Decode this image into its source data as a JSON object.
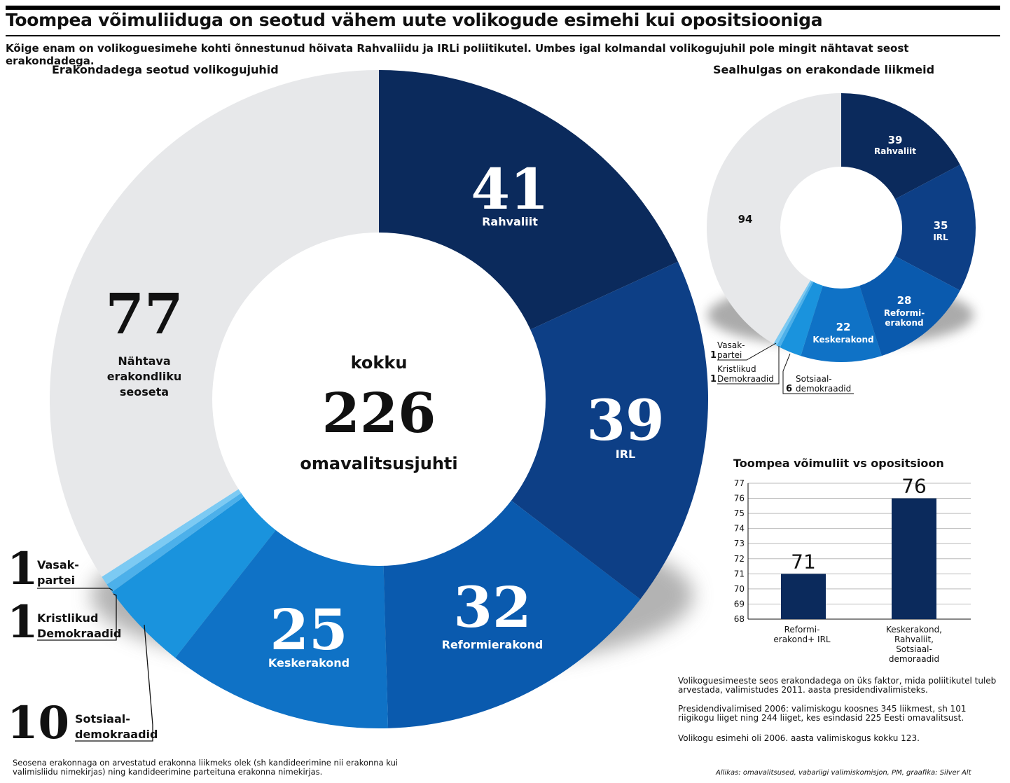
{
  "header": {
    "title": "Toompea võimuliiduga on seotud vähem uute volikogude esimehi kui opositsiooniga",
    "subtitle": "Kõige enam on volikoguesimehe kohti õnnestunud hõivata Rahvaliidu ja IRLi poliitikutel. Umbes igal kolmandal volikogujuhil pole mingit nähtavat seost erakondadega."
  },
  "colors": {
    "rahvaliit": "#0b2a5c",
    "irl": "#0d3f86",
    "reform": "#0a5aae",
    "kesk": "#0f72c6",
    "sots": "#1a93dd",
    "kristlik": "#4cb0ea",
    "vasak": "#7ccaf3",
    "none": "#e7e8ea"
  },
  "chart_data": [
    {
      "type": "pie",
      "title": "Erakondadega seotud volikogujuhid",
      "center": {
        "top": "kokku",
        "value": "226",
        "bottom": "omavalitsusjuhti"
      },
      "slices": [
        {
          "key": "rahvaliit",
          "value": 41,
          "label": "Rahvaliit"
        },
        {
          "key": "irl",
          "value": 39,
          "label": "IRL"
        },
        {
          "key": "reform",
          "value": 32,
          "label": "Reformierakond"
        },
        {
          "key": "kesk",
          "value": 25,
          "label": "Keskerakond"
        },
        {
          "key": "sots",
          "value": 10,
          "label": "Sotsiaal- demokraadid"
        },
        {
          "key": "kristlik",
          "value": 1,
          "label": "Kristlikud Demokraadid"
        },
        {
          "key": "vasak",
          "value": 1,
          "label": "Vasak- partei"
        },
        {
          "key": "none",
          "value": 77,
          "label": "Nähtava erakondliku seoseta"
        }
      ]
    },
    {
      "type": "pie",
      "title": "Sealhulgas on erakondade liikmeid",
      "slices": [
        {
          "key": "rahvaliit",
          "value": 39,
          "label": "Rahvaliit"
        },
        {
          "key": "irl",
          "value": 35,
          "label": "IRL"
        },
        {
          "key": "reform",
          "value": 28,
          "label": "Reformi- erakond"
        },
        {
          "key": "kesk",
          "value": 22,
          "label": "Keskerakond"
        },
        {
          "key": "sots",
          "value": 6,
          "label": "Sotsiaal- demokraadid"
        },
        {
          "key": "kristlik",
          "value": 1,
          "label": "Kristlikud Demokraadid"
        },
        {
          "key": "vasak",
          "value": 1,
          "label": "Vasak- partei"
        },
        {
          "key": "none",
          "value": 94,
          "label": ""
        }
      ]
    },
    {
      "type": "bar",
      "title": "Toompea võimuliit vs opositsioon",
      "categories": [
        "Reformi- erakond+ IRL",
        "Keskerakond, Rahvaliit, Sotsiaal- demoraadid"
      ],
      "values": [
        71,
        76
      ],
      "ylim": [
        68,
        77
      ],
      "yticks": [
        68,
        69,
        70,
        71,
        72,
        73,
        74,
        75,
        76,
        77
      ]
    }
  ],
  "notes": {
    "note1": "Volikoguesimeeste seos erakondadega on üks faktor, mida poliitikutel tuleb arvestada, valimistudes 2011. aasta presidendivalimisteks.",
    "note2": "Presidendivalimised 2006: valimiskogu koosnes 345 liikmest, sh 101 riigikogu liiget ning 244 liiget, kes esindasid 225 Eesti omavalitsust.",
    "note3": "Volikogu esimehi oli 2006. aasta valimiskogus kokku 123.",
    "footnote": "Seosena erakonnaga on arvestatud erakonna liikmeks olek (sh kandideerimine nii erakonna kui valimisliidu nimekirjas) ning kandideerimine parteituna erakonna nimekirjas.",
    "credit": "Allikas: omavalitsused, vabariigi valimiskomisjon, PM, graafika: Silver Alt"
  }
}
